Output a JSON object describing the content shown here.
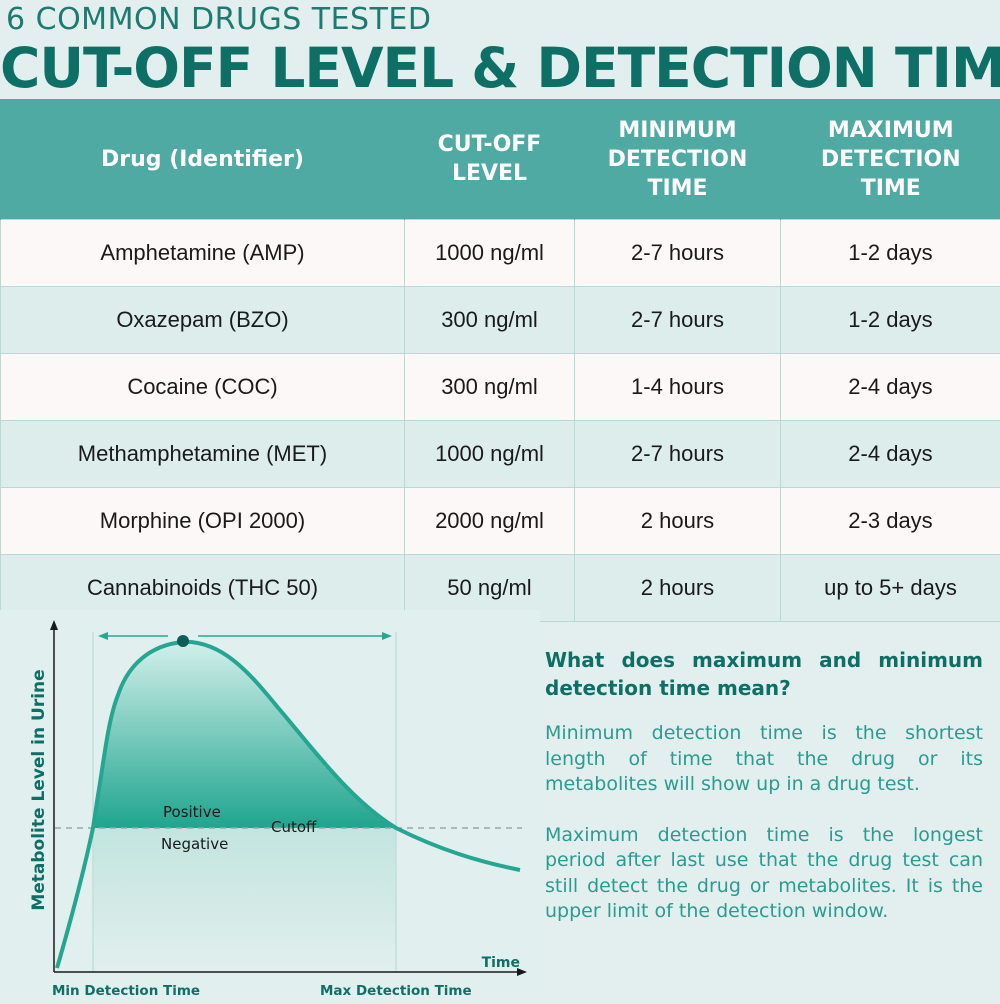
{
  "header": {
    "subtitle": "6 COMMON DRUGS TESTED",
    "title": "CUT-OFF LEVEL & DETECTION TIME"
  },
  "table": {
    "headers": {
      "drug": "Drug (Identifier)",
      "cutoff": [
        "CUT-OFF",
        "LEVEL"
      ],
      "min": [
        "MINIMUM",
        "DETECTION",
        "TIME"
      ],
      "max": [
        "MAXIMUM",
        "DETECTION",
        "TIME"
      ]
    },
    "rows": [
      {
        "drug": "Amphetamine (AMP)",
        "cutoff": "1000 ng/ml",
        "min": "2-7 hours",
        "max": "1-2 days"
      },
      {
        "drug": "Oxazepam (BZO)",
        "cutoff": "300 ng/ml",
        "min": "2-7 hours",
        "max": "1-2 days"
      },
      {
        "drug": "Cocaine (COC)",
        "cutoff": "300 ng/ml",
        "min": "1-4 hours",
        "max": "2-4 days"
      },
      {
        "drug": "Methamphetamine (MET)",
        "cutoff": "1000 ng/ml",
        "min": "2-7 hours",
        "max": "2-4 days"
      },
      {
        "drug": "Morphine (OPI 2000)",
        "cutoff": "2000 ng/ml",
        "min": "2 hours",
        "max": "2-3 days"
      },
      {
        "drug": "Cannabinoids (THC 50)",
        "cutoff": "50 ng/ml",
        "min": "2 hours",
        "max": "up to 5+ days"
      }
    ]
  },
  "graph": {
    "y_label": "Metabolite Level in Urine",
    "x_label": "Time",
    "positive": "Positive",
    "negative": "Negative",
    "cutoff": "Cutoff",
    "min_label": "Min Detection Time",
    "max_label": "Max Detection Time"
  },
  "info": {
    "heading": "What does maximum and minimum detection time mean?",
    "p1": "Minimum detection time is the shortest length of time that the drug or its metabolites will show up in a drug test.",
    "p2": "Maximum detection time is the longest period after last use that the drug test can still detect the drug or metabolites. It is the upper limit of the detection window."
  },
  "colors": {
    "brand": "#0e6f67",
    "header_bg": "#4eaaa3",
    "curve": "#24a693",
    "text_accent": "#2a9b92"
  }
}
